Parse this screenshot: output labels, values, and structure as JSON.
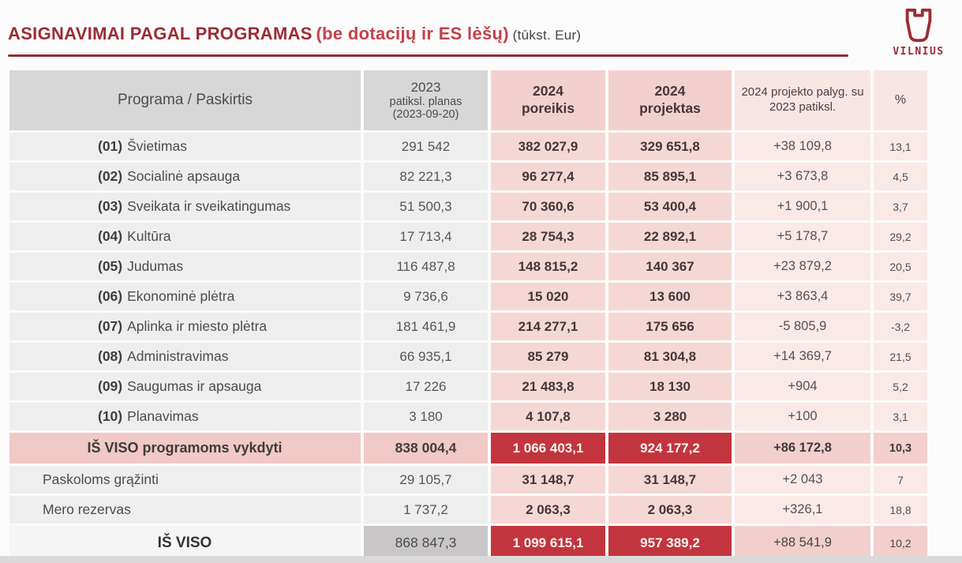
{
  "page": {
    "title_main": "ASIGNAVIMAI PAGAL PROGRAMAS",
    "title_paren": "(be dotacijų ir ES lėšų)",
    "title_unit": "(tūkst. Eur)",
    "logo_text": "VILNIUS"
  },
  "colors": {
    "title_dark_red": "#9b2c35",
    "title_light_red": "#c2424b",
    "accent_red": "#c2353e",
    "header_gray": "#d8d7d7",
    "header_pink": "#f2d0ce",
    "header_light_pink": "#f8e6e4",
    "row_gray": "#efeeee",
    "row_pink": "#f5d8d6",
    "row_light_pink": "#f9eae8",
    "subtotal_pink": "#f1c9c7",
    "grandtotal_gray": "#c8c6c6"
  },
  "table": {
    "headers": {
      "col1": "Programa / Paskirtis",
      "col2_line1": "2023",
      "col2_line2": "patiksl. planas",
      "col2_line3": "(2023-09-20)",
      "col3_line1": "2024",
      "col3_line2": "poreikis",
      "col4_line1": "2024",
      "col4_line2": "projektas",
      "col5": "2024 projekto palyg. su 2023 patiksl.",
      "col6": "%"
    },
    "rows": [
      {
        "type": "program",
        "num": "(01)",
        "name": "Švietimas",
        "plan2023": "291 542",
        "need2024": "382 027,9",
        "proj2024": "329 651,8",
        "diff": "+38 109,8",
        "pct": "13,1"
      },
      {
        "type": "program",
        "num": "(02)",
        "name": "Socialinė apsauga",
        "plan2023": "82 221,3",
        "need2024": "96 277,4",
        "proj2024": "85 895,1",
        "diff": "+3 673,8",
        "pct": "4,5"
      },
      {
        "type": "program",
        "num": "(03)",
        "name": "Sveikata ir sveikatingumas",
        "plan2023": "51 500,3",
        "need2024": "70 360,6",
        "proj2024": "53 400,4",
        "diff": "+1 900,1",
        "pct": "3,7"
      },
      {
        "type": "program",
        "num": "(04)",
        "name": "Kultūra",
        "plan2023": "17 713,4",
        "need2024": "28 754,3",
        "proj2024": "22 892,1",
        "diff": "+5 178,7",
        "pct": "29,2"
      },
      {
        "type": "program",
        "num": "(05)",
        "name": "Judumas",
        "plan2023": "116 487,8",
        "need2024": "148 815,2",
        "proj2024": "140 367",
        "diff": "+23 879,2",
        "pct": "20,5"
      },
      {
        "type": "program",
        "num": "(06)",
        "name": "Ekonominė plėtra",
        "plan2023": "9 736,6",
        "need2024": "15 020",
        "proj2024": "13 600",
        "diff": "+3 863,4",
        "pct": "39,7"
      },
      {
        "type": "program",
        "num": "(07)",
        "name": "Aplinka ir miesto plėtra",
        "plan2023": "181 461,9",
        "need2024": "214 277,1",
        "proj2024": "175 656",
        "diff": "-5 805,9",
        "pct": "-3,2"
      },
      {
        "type": "program",
        "num": "(08)",
        "name": "Administravimas",
        "plan2023": "66 935,1",
        "need2024": "85 279",
        "proj2024": "81 304,8",
        "diff": "+14 369,7",
        "pct": "21,5"
      },
      {
        "type": "program",
        "num": "(09)",
        "name": "Saugumas ir apsauga",
        "plan2023": "17 226",
        "need2024": "21 483,8",
        "proj2024": "18 130",
        "diff": "+904",
        "pct": "5,2"
      },
      {
        "type": "program",
        "num": "(10)",
        "name": "Planavimas",
        "plan2023": "3 180",
        "need2024": "4 107,8",
        "proj2024": "3 280",
        "diff": "+100",
        "pct": "3,1"
      },
      {
        "type": "subtotal",
        "num": "",
        "name": "IŠ VISO programoms vykdyti",
        "plan2023": "838 004,4",
        "need2024": "1 066 403,1",
        "proj2024": "924 177,2",
        "diff": "+86 172,8",
        "pct": "10,3"
      },
      {
        "type": "plain",
        "num": "",
        "name": "Paskoloms grąžinti",
        "plan2023": "29 105,7",
        "need2024": "31 148,7",
        "proj2024": "31 148,7",
        "diff": "+2 043",
        "pct": "7"
      },
      {
        "type": "plain",
        "num": "",
        "name": "Mero rezervas",
        "plan2023": "1 737,2",
        "need2024": "2 063,3",
        "proj2024": "2 063,3",
        "diff": "+326,1",
        "pct": "18,8"
      },
      {
        "type": "grandtotal",
        "num": "",
        "name": "IŠ VISO",
        "plan2023": "868 847,3",
        "need2024": "1 099 615,1",
        "proj2024": "957 389,2",
        "diff": "+88 541,9",
        "pct": "10,2"
      }
    ]
  }
}
